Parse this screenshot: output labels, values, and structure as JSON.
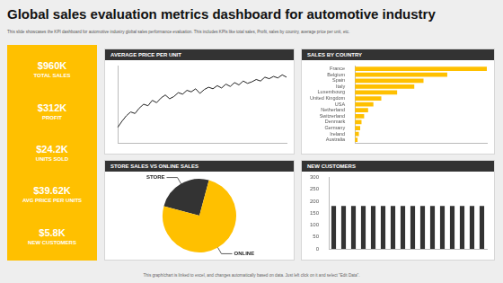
{
  "title": "Global sales evaluation metrics dashboard for automotive industry",
  "subtitle": "This slide showcases the KPI dashboard for automotive industry global sales performance evaluation. This includes KPIs like total sales, Profit, sales by country, average price per unit, etc.",
  "kpis": [
    {
      "value": "$960K",
      "label": "TOTAL SALES"
    },
    {
      "value": "$312K",
      "label": "PROFIT"
    },
    {
      "value": "$24.2K",
      "label": "UNITS SOLD"
    },
    {
      "value": "$39.62K",
      "label": "AVG PRICE PER UNITS"
    },
    {
      "value": "$5.8K",
      "label": "NEW CUSTOMERS"
    }
  ],
  "chart_data": [
    {
      "type": "line",
      "title": "AVERAGE PRICE PER UNIT",
      "categories": [
        null,
        null,
        null,
        null,
        null,
        null,
        null,
        null,
        null,
        null,
        null,
        null,
        null,
        null,
        null,
        null,
        null,
        null,
        null,
        null,
        null,
        null,
        null,
        null,
        null,
        null,
        null,
        null,
        null,
        null,
        null,
        null,
        null,
        null,
        null,
        null,
        null,
        null,
        null,
        null
      ],
      "values": [
        20,
        28,
        35,
        40,
        38,
        45,
        50,
        48,
        55,
        52,
        58,
        62,
        57,
        60,
        65,
        63,
        68,
        66,
        70,
        64,
        69,
        72,
        70,
        74,
        71,
        76,
        73,
        78,
        75,
        80,
        77,
        79,
        82,
        80,
        85,
        83,
        86,
        84,
        88,
        85
      ],
      "color": "#222222",
      "marker": "none",
      "ylim": [
        0,
        100
      ],
      "grid": false,
      "tick_labels": false
    },
    {
      "type": "bar",
      "title": "SALES BY COUNTRY",
      "orientation": "horizontal",
      "categories": [
        "France",
        "Belgium",
        "Spain",
        "Italy",
        "Luxembourg",
        "United Kingdom",
        "USA",
        "Netherland",
        "Switzerland",
        "Denmark",
        "Germany",
        "Ireland",
        "Australia"
      ],
      "values": [
        100,
        70,
        52,
        45,
        32,
        20,
        14,
        10,
        7,
        5,
        4,
        3,
        2
      ],
      "color": "#FFC000",
      "xlim": [
        0,
        100
      ],
      "grid": false,
      "tick_labels": "y"
    },
    {
      "type": "pie",
      "title": "STORE SALES VS ONLINE SALES",
      "categories": [
        "STORE",
        "ONLINE"
      ],
      "values": [
        25,
        75
      ],
      "colors": [
        "#333333",
        "#FFC000"
      ]
    },
    {
      "type": "bar",
      "title": "NEW CUSTOMERS",
      "categories": [
        null,
        null,
        null,
        null,
        null,
        null,
        null,
        null,
        null,
        null,
        null,
        null,
        null,
        null,
        null,
        null
      ],
      "values": [
        180,
        180,
        180,
        180,
        180,
        180,
        180,
        180,
        180,
        180,
        180,
        180,
        180,
        180,
        180,
        180
      ],
      "color": "#333333",
      "ylim": [
        0,
        300
      ],
      "yticks": [
        0,
        50,
        100,
        150,
        200,
        250,
        300
      ],
      "grid": false,
      "tick_labels": "y"
    }
  ],
  "footer": "This graph/chart is linked to excel, and changes automatically based on data. Just left click on it and select \"Edit Data\"."
}
